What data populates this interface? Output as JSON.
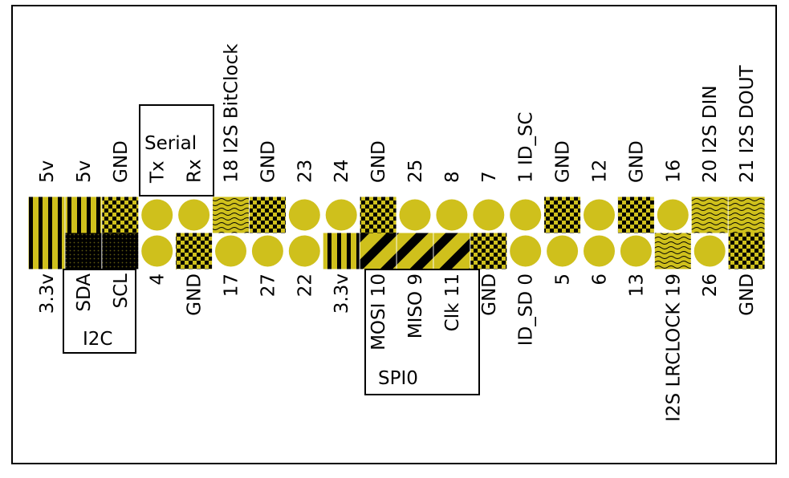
{
  "colors": {
    "pin_fill": "#cfc01c",
    "checker_dark": "#000000",
    "background": "#ffffff",
    "outline": "#000000"
  },
  "header": {
    "top": [
      "5v",
      "5v",
      "GND",
      "Tx",
      "Rx",
      "18 I2S BitClock",
      "GND",
      "23",
      "24",
      "GND",
      "25",
      "8",
      "7",
      "1 ID_SC",
      "GND",
      "12",
      "GND",
      "16",
      "20 I2S DIN",
      "21 I2S DOUT"
    ],
    "bottom": [
      "3.3v",
      "SDA",
      "SCL",
      "4",
      "GND",
      "17",
      "27",
      "22",
      "3.3v",
      "MOSI 10",
      "MISO  9",
      "Clk  11",
      "GND",
      "ID_SD 0",
      "5",
      "6",
      "13",
      "I2S LRCLOCK 19",
      "26",
      "GND"
    ],
    "top_patterns": [
      "vstripes",
      "vstripes",
      "checker",
      "plain",
      "plain",
      "wavy",
      "checker",
      "plain",
      "plain",
      "checker",
      "plain",
      "plain",
      "plain",
      "plain",
      "checker",
      "plain",
      "checker",
      "plain",
      "wavy",
      "wavy"
    ],
    "bottom_patterns": [
      "vstripes",
      "dots",
      "dots",
      "plain",
      "checker",
      "plain",
      "plain",
      "plain",
      "vstripes",
      "diagonal",
      "diagonal",
      "diagonal",
      "checker",
      "plain",
      "plain",
      "plain",
      "plain",
      "wavy",
      "plain",
      "checker"
    ]
  },
  "groups": {
    "serial": "Serial",
    "i2c": "I2C",
    "spi": "SPI0"
  }
}
